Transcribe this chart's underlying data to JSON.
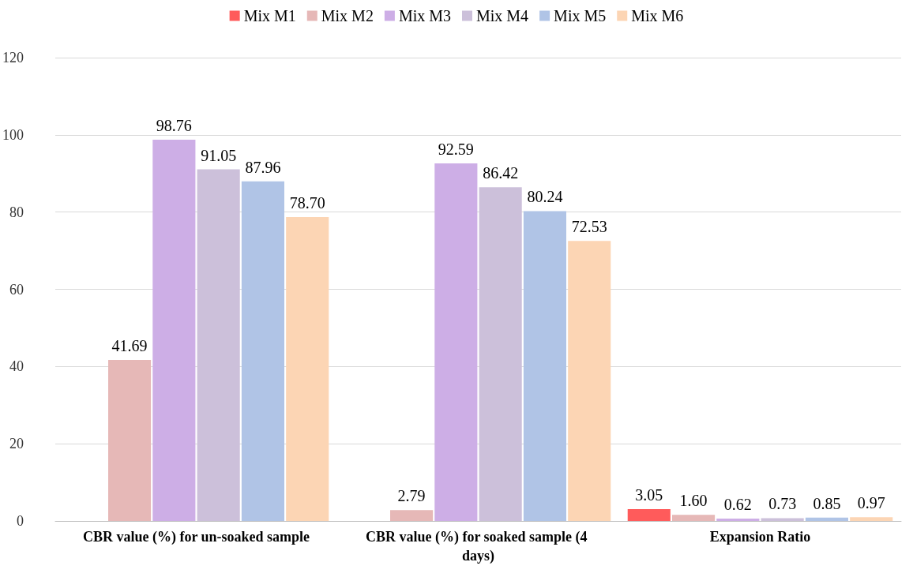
{
  "chart_data": {
    "type": "bar",
    "categories": [
      "CBR value (%) for un-soaked sample",
      "CBR value (%) for soaked sample (4 days)",
      "Expansion Ratio"
    ],
    "series": [
      {
        "name": "Mix M1",
        "color": "#ff5b5b",
        "values": [
          null,
          null,
          3.05
        ],
        "value_labels": [
          null,
          null,
          "3.05"
        ]
      },
      {
        "name": "Mix M2",
        "color": "#e6b8b7",
        "values": [
          41.69,
          2.79,
          1.6
        ],
        "value_labels": [
          "41.69",
          "2.79",
          "1.60"
        ]
      },
      {
        "name": "Mix M3",
        "color": "#cdaee6",
        "values": [
          98.76,
          92.59,
          0.62
        ],
        "value_labels": [
          "98.76",
          "92.59",
          "0.62"
        ]
      },
      {
        "name": "Mix M4",
        "color": "#ccc0da",
        "values": [
          91.05,
          86.42,
          0.73
        ],
        "value_labels": [
          "91.05",
          "86.42",
          "0.73"
        ]
      },
      {
        "name": "Mix M5",
        "color": "#b0c4e6",
        "values": [
          87.96,
          80.24,
          0.85
        ],
        "value_labels": [
          "87.96",
          "80.24",
          "0.85"
        ]
      },
      {
        "name": "Mix M6",
        "color": "#fcd5b4",
        "values": [
          78.7,
          72.53,
          0.97
        ],
        "value_labels": [
          "78.70",
          "72.53",
          "0.97"
        ]
      }
    ],
    "ylim": [
      0,
      120
    ],
    "yticks": [
      0,
      20,
      40,
      60,
      80,
      100,
      120
    ],
    "grid": "y",
    "legend": "top"
  }
}
